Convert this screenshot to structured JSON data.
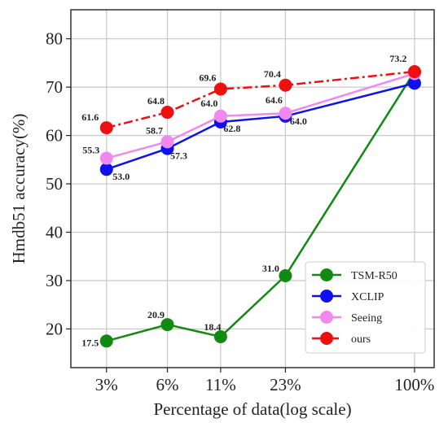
{
  "chart_data": {
    "type": "line",
    "xlabel": "Percentage of data(log scale)",
    "ylabel": "Hmdb51 accuracy(%)",
    "categories": [
      "3%",
      "6%",
      "11%",
      "23%",
      "100%"
    ],
    "x": [
      3,
      6,
      11,
      23,
      100
    ],
    "x_scale": "log",
    "ylim": [
      12,
      86
    ],
    "yticks": [
      20,
      30,
      40,
      50,
      60,
      70,
      80
    ],
    "grid": true,
    "legend_position": "bottom-right",
    "series": [
      {
        "name": "TSM-R50",
        "color": "#118a11",
        "style": "solid",
        "values": [
          17.5,
          20.9,
          18.4,
          31.0,
          73.2
        ],
        "labels": [
          "17.5",
          "20.9",
          "18.4",
          "31.0",
          ""
        ]
      },
      {
        "name": "XCLIP",
        "color": "#1010ee",
        "style": "solid",
        "values": [
          53.0,
          57.3,
          62.8,
          64.0,
          70.8
        ],
        "labels": [
          "53.0",
          "57.3",
          "62.8",
          "64.0",
          ""
        ]
      },
      {
        "name": "Seeing",
        "color": "#ef88ef",
        "style": "solid",
        "values": [
          55.3,
          58.7,
          64.0,
          64.6,
          72.8
        ],
        "labels": [
          "55.3",
          "58.7",
          "64.0",
          "64.6",
          ""
        ]
      },
      {
        "name": "ours",
        "color": "#ee1010",
        "style": "dashdot",
        "values": [
          61.6,
          64.8,
          69.6,
          70.4,
          73.2
        ],
        "labels": [
          "61.6",
          "64.8",
          "69.6",
          "70.4",
          "73.2"
        ]
      }
    ]
  }
}
